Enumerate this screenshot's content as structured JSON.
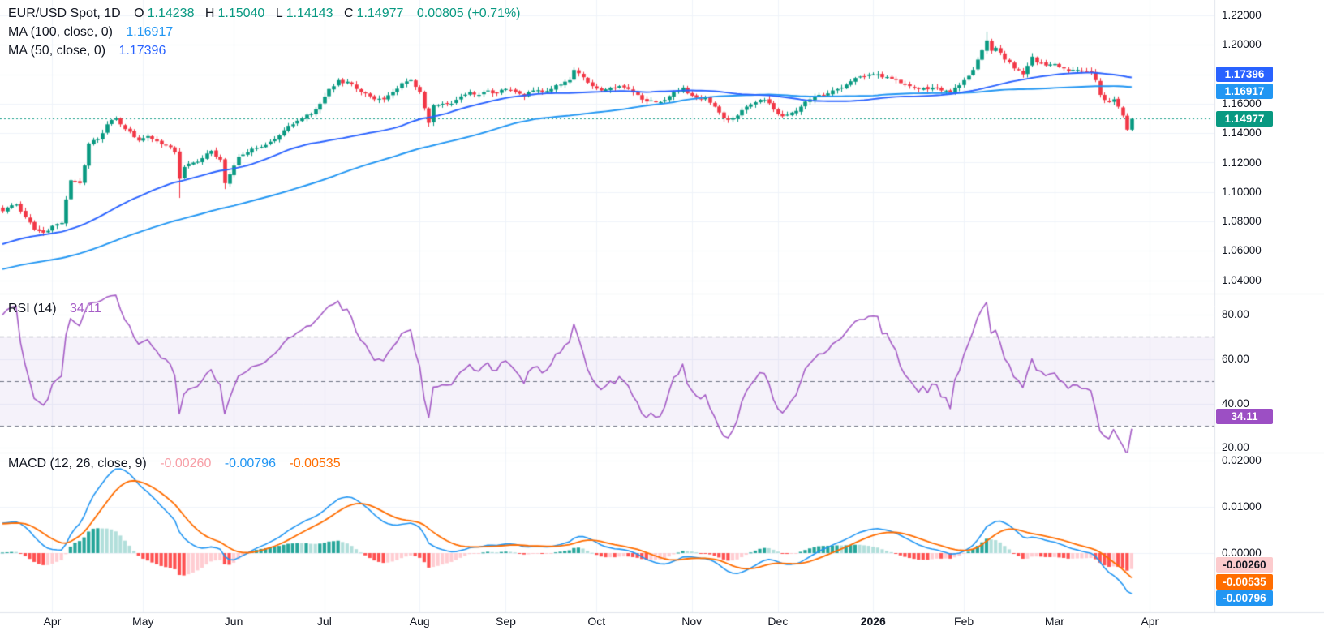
{
  "header": {
    "symbol_line": {
      "title": "EUR/USD Spot, 1D",
      "o_label": "O",
      "o": "1.14238",
      "h_label": "H",
      "h": "1.15040",
      "l_label": "L",
      "l": "1.14143",
      "c_label": "C",
      "c": "1.14977",
      "change": "0.00805 (+0.71%)"
    },
    "ma100": {
      "label": "MA (100, close, 0)",
      "value": "1.16917"
    },
    "ma50": {
      "label": "MA (50, close, 0)",
      "value": "1.17396"
    }
  },
  "rsi_header": {
    "label": "RSI (14)",
    "value": "34.11"
  },
  "macd_header": {
    "label": "MACD (12, 26, close, 9)",
    "hist": "-0.00260",
    "macd": "-0.00796",
    "signal": "-0.00535"
  },
  "price_axis": {
    "ticks": [
      {
        "text": "1.22000",
        "value": 1.22
      },
      {
        "text": "1.20000",
        "value": 1.2
      },
      {
        "text": "1.16000",
        "value": 1.16
      },
      {
        "text": "1.14000",
        "value": 1.14
      },
      {
        "text": "1.12000",
        "value": 1.12
      },
      {
        "text": "1.10000",
        "value": 1.1
      },
      {
        "text": "1.08000",
        "value": 1.08
      },
      {
        "text": "1.06000",
        "value": 1.06
      },
      {
        "text": "1.04000",
        "value": 1.04
      }
    ]
  },
  "rsi_axis": {
    "ticks": [
      {
        "text": "80.00",
        "value": 80
      },
      {
        "text": "60.00",
        "value": 60
      },
      {
        "text": "40.00",
        "value": 40
      },
      {
        "text": "20.00",
        "value": 20
      }
    ]
  },
  "macd_axis": {
    "ticks": [
      {
        "text": "0.02000",
        "value": 0.02
      },
      {
        "text": "0.01000",
        "value": 0.01
      },
      {
        "text": "0.00000",
        "value": 0
      }
    ]
  },
  "badges": {
    "price": [
      {
        "id": "ma50-price",
        "text": "1.17396",
        "value": 1.17396,
        "bg": "#2962ff",
        "fg": "#ffffff"
      },
      {
        "id": "ma100-price",
        "text": "1.16917",
        "value": 1.16917,
        "bg": "#2196f3",
        "fg": "#ffffff"
      },
      {
        "id": "last-price",
        "text": "1.14977",
        "value": 1.14977,
        "bg": "#089981",
        "fg": "#ffffff"
      }
    ],
    "rsi": [
      {
        "id": "rsi-value",
        "text": "34.11",
        "value": 34.11,
        "bg": "#9c4fc4",
        "fg": "#ffffff"
      }
    ],
    "macd": [
      {
        "id": "macd-histogram",
        "text": "-0.00260",
        "value": -0.0026,
        "bg": "#fccbcd",
        "fg": "#131722"
      },
      {
        "id": "macd-signal",
        "text": "-0.00535",
        "value": -0.00535,
        "bg": "#ff6d00",
        "fg": "#ffffff"
      },
      {
        "id": "macd-line",
        "text": "-0.00796",
        "value": -0.00796,
        "bg": "#2196f3",
        "fg": "#ffffff"
      }
    ]
  },
  "time_axis": {
    "months": [
      {
        "label": "Apr",
        "day": 11
      },
      {
        "label": "May",
        "day": 31
      },
      {
        "label": "Jun",
        "day": 51
      },
      {
        "label": "Jul",
        "day": 71
      },
      {
        "label": "Aug",
        "day": 92
      },
      {
        "label": "Sep",
        "day": 111
      },
      {
        "label": "Oct",
        "day": 131
      },
      {
        "label": "Nov",
        "day": 152
      },
      {
        "label": "Dec",
        "day": 171
      },
      {
        "label": "2026",
        "day": 192,
        "bold": true
      },
      {
        "label": "Feb",
        "day": 212
      },
      {
        "label": "Mar",
        "day": 232
      },
      {
        "label": "Apr",
        "day": 253
      }
    ]
  },
  "colors": {
    "background": "#ffffff",
    "grid": "#f0f3fa",
    "separator": "#e0e3eb",
    "axis_text": "#131722",
    "up": "#089981",
    "down": "#f23645",
    "ma50": "#2962ff",
    "ma100": "#2196f3",
    "rsi_line": "#a55cc6",
    "rsi_band": "rgba(126,87,194,0.08)",
    "rsi_dash": "#6f7484",
    "macd_line": "#2196f3",
    "signal_line": "#ff6d00",
    "hist_up_strong": "#26a69a",
    "hist_up_weak": "#b2dfdb",
    "hist_down_strong": "#ff5252",
    "hist_down_weak": "#ffcdd2",
    "last_price_line": "#089981"
  },
  "chart_data": {
    "type": "candlestick",
    "title": "EUR/USD Spot, 1D",
    "x_unit": "trading-day index, 0 = left edge (Apr 2025) to 249 = last candle (Mar 2026)",
    "y_axis": {
      "min": 1.04,
      "max": 1.22,
      "step": 0.02
    },
    "panes": [
      "price+MA50+MA100",
      "RSI(14) band 30-70",
      "MACD(12,26,9) with histogram"
    ],
    "last_candle": {
      "open": 1.14238,
      "high": 1.1504,
      "low": 1.14143,
      "close": 1.14977
    },
    "indicator_last_values": {
      "ma50": 1.17396,
      "ma100": 1.16917,
      "rsi": 34.11,
      "macd": -0.00796,
      "signal": -0.00535,
      "histogram": -0.0026
    },
    "rsi_levels": {
      "overbought": 70,
      "middle": 50,
      "oversold": 30
    },
    "price_keypoints": [
      [
        0,
        1.087
      ],
      [
        2,
        1.091
      ],
      [
        3,
        1.0915
      ],
      [
        5,
        1.083
      ],
      [
        7,
        1.0745
      ],
      [
        9,
        1.0724
      ],
      [
        11,
        1.077
      ],
      [
        13,
        1.079
      ],
      [
        14,
        1.095
      ],
      [
        15,
        1.108
      ],
      [
        17,
        1.106
      ],
      [
        18,
        1.118
      ],
      [
        19,
        1.133
      ],
      [
        21,
        1.136
      ],
      [
        22,
        1.14
      ],
      [
        23,
        1.146
      ],
      [
        25,
        1.15
      ],
      [
        26,
        1.146
      ],
      [
        28,
        1.141
      ],
      [
        30,
        1.135
      ],
      [
        32,
        1.138
      ],
      [
        34,
        1.1345
      ],
      [
        36,
        1.132
      ],
      [
        38,
        1.127
      ],
      [
        39,
        1.109
      ],
      [
        40,
        1.117
      ],
      [
        42,
        1.12
      ],
      [
        44,
        1.123
      ],
      [
        46,
        1.128
      ],
      [
        48,
        1.122
      ],
      [
        49,
        1.106
      ],
      [
        50,
        1.112
      ],
      [
        52,
        1.124
      ],
      [
        54,
        1.127
      ],
      [
        56,
        1.13
      ],
      [
        58,
        1.132
      ],
      [
        60,
        1.136
      ],
      [
        62,
        1.142
      ],
      [
        64,
        1.146
      ],
      [
        66,
        1.15
      ],
      [
        68,
        1.153
      ],
      [
        70,
        1.16
      ],
      [
        72,
        1.17
      ],
      [
        74,
        1.176
      ],
      [
        75,
        1.174
      ],
      [
        76,
        1.175
      ],
      [
        78,
        1.17
      ],
      [
        80,
        1.167
      ],
      [
        82,
        1.163
      ],
      [
        84,
        1.163
      ],
      [
        86,
        1.168
      ],
      [
        88,
        1.174
      ],
      [
        90,
        1.176
      ],
      [
        92,
        1.168
      ],
      [
        93,
        1.157
      ],
      [
        94,
        1.147
      ],
      [
        95,
        1.159
      ],
      [
        97,
        1.16
      ],
      [
        99,
        1.16
      ],
      [
        101,
        1.165
      ],
      [
        103,
        1.168
      ],
      [
        105,
        1.166
      ],
      [
        107,
        1.169
      ],
      [
        109,
        1.167
      ],
      [
        111,
        1.17
      ],
      [
        113,
        1.168
      ],
      [
        115,
        1.165
      ],
      [
        117,
        1.169
      ],
      [
        119,
        1.168
      ],
      [
        121,
        1.17
      ],
      [
        123,
        1.173
      ],
      [
        125,
        1.176
      ],
      [
        126,
        1.183
      ],
      [
        128,
        1.178
      ],
      [
        130,
        1.172
      ],
      [
        132,
        1.169
      ],
      [
        134,
        1.171
      ],
      [
        136,
        1.172
      ],
      [
        138,
        1.17
      ],
      [
        140,
        1.166
      ],
      [
        142,
        1.1615
      ],
      [
        144,
        1.161
      ],
      [
        146,
        1.1625
      ],
      [
        148,
        1.168
      ],
      [
        150,
        1.171
      ],
      [
        151,
        1.167
      ],
      [
        153,
        1.164
      ],
      [
        155,
        1.164
      ],
      [
        157,
        1.158
      ],
      [
        159,
        1.15
      ],
      [
        160,
        1.149
      ],
      [
        162,
        1.152
      ],
      [
        164,
        1.158
      ],
      [
        166,
        1.161
      ],
      [
        168,
        1.1625
      ],
      [
        170,
        1.156
      ],
      [
        172,
        1.1515
      ],
      [
        174,
        1.154
      ],
      [
        176,
        1.158
      ],
      [
        178,
        1.163
      ],
      [
        180,
        1.166
      ],
      [
        182,
        1.167
      ],
      [
        184,
        1.17
      ],
      [
        186,
        1.173
      ],
      [
        188,
        1.1775
      ],
      [
        190,
        1.1785
      ],
      [
        192,
        1.18
      ],
      [
        194,
        1.178
      ],
      [
        196,
        1.177
      ],
      [
        198,
        1.174
      ],
      [
        200,
        1.172
      ],
      [
        202,
        1.17
      ],
      [
        205,
        1.171
      ],
      [
        207,
        1.169
      ],
      [
        209,
        1.167
      ],
      [
        210,
        1.171
      ],
      [
        212,
        1.176
      ],
      [
        214,
        1.183
      ],
      [
        215,
        1.19
      ],
      [
        217,
        1.203
      ],
      [
        218,
        1.196
      ],
      [
        219,
        1.198
      ],
      [
        221,
        1.19
      ],
      [
        223,
        1.184
      ],
      [
        225,
        1.18
      ],
      [
        227,
        1.192
      ],
      [
        228,
        1.188
      ],
      [
        230,
        1.186
      ],
      [
        232,
        1.187
      ],
      [
        234,
        1.184
      ],
      [
        235,
        1.182
      ],
      [
        237,
        1.183
      ],
      [
        239,
        1.182
      ],
      [
        240,
        1.1815
      ],
      [
        241,
        1.176
      ],
      [
        242,
        1.166
      ],
      [
        244,
        1.161
      ],
      [
        245,
        1.163
      ],
      [
        246,
        1.158
      ],
      [
        247,
        1.152
      ],
      [
        248,
        1.1424
      ],
      [
        249,
        1.14977
      ]
    ],
    "wick_overrides": [
      {
        "day": 217,
        "high": 1.209
      },
      {
        "day": 39,
        "low": 1.096
      },
      {
        "day": 94,
        "low": 1.1445
      },
      {
        "day": 49,
        "low": 1.102
      }
    ]
  }
}
